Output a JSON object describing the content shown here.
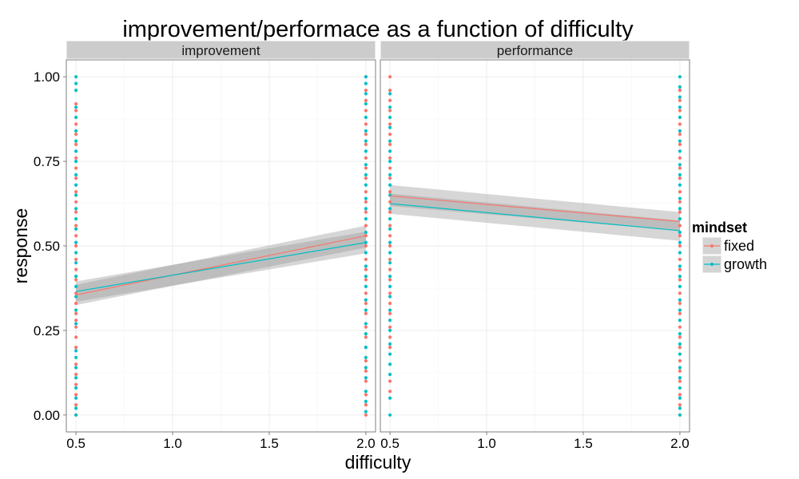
{
  "chart_data": {
    "type": "scatter",
    "title": "improvement/performace as a function of difficulty",
    "xlabel": "difficulty",
    "ylabel": "response",
    "xlim": [
      0.45,
      2.05
    ],
    "ylim": [
      -0.05,
      1.05
    ],
    "x_ticks": [
      0.5,
      1.0,
      1.5,
      2.0
    ],
    "x_tick_labels": [
      "0.5",
      "1.0",
      "1.5",
      "2.0"
    ],
    "y_ticks": [
      0.0,
      0.25,
      0.5,
      0.75,
      1.0
    ],
    "y_tick_labels": [
      "0.00",
      "0.25",
      "0.50",
      "0.75",
      "1.00"
    ],
    "grid": true,
    "legend": {
      "title": "mindset",
      "position": "right",
      "entries": [
        {
          "label": "fixed",
          "color": "#F8766D"
        },
        {
          "label": "growth",
          "color": "#00BFC4"
        }
      ]
    },
    "panels": [
      {
        "label": "improvement",
        "series": [
          {
            "name": "fixed",
            "color": "#F8766D",
            "points": {
              "0.5": [
                0.0,
                0.03,
                0.06,
                0.09,
                0.12,
                0.15,
                0.2,
                0.23,
                0.26,
                0.28,
                0.3,
                0.33,
                0.36,
                0.4,
                0.43,
                0.46,
                0.5,
                0.53,
                0.56,
                0.6,
                0.63,
                0.66,
                0.7,
                0.73,
                0.76,
                0.8,
                0.83,
                0.86,
                0.9,
                0.92
              ],
              "2.0": [
                0.0,
                0.03,
                0.06,
                0.1,
                0.13,
                0.16,
                0.2,
                0.23,
                0.26,
                0.3,
                0.33,
                0.36,
                0.4,
                0.43,
                0.46,
                0.5,
                0.53,
                0.56,
                0.6,
                0.63,
                0.66,
                0.7,
                0.73,
                0.76,
                0.8,
                0.83,
                0.86,
                0.9,
                0.93,
                0.96,
                1.0
              ]
            },
            "fit": {
              "x": [
                0.5,
                2.0
              ],
              "y": [
                0.355,
                0.53
              ]
            },
            "band": {
              "lower": [
                0.325,
                0.495
              ],
              "upper": [
                0.385,
                0.56
              ]
            }
          },
          {
            "name": "growth",
            "color": "#00BFC4",
            "points": {
              "0.5": [
                0.0,
                0.02,
                0.05,
                0.08,
                0.11,
                0.14,
                0.17,
                0.19,
                0.27,
                0.31,
                0.35,
                0.38,
                0.41,
                0.45,
                0.48,
                0.51,
                0.55,
                0.58,
                0.61,
                0.65,
                0.68,
                0.71,
                0.75,
                0.78,
                0.81,
                0.84,
                0.88,
                0.91,
                0.96,
                0.98,
                1.0
              ],
              "2.0": [
                0.01,
                0.04,
                0.07,
                0.11,
                0.14,
                0.17,
                0.2,
                0.24,
                0.27,
                0.31,
                0.34,
                0.38,
                0.41,
                0.44,
                0.48,
                0.51,
                0.54,
                0.58,
                0.61,
                0.64,
                0.68,
                0.71,
                0.74,
                0.78,
                0.81,
                0.84,
                0.88,
                0.92,
                0.95,
                0.98,
                1.0
              ]
            },
            "fit": {
              "x": [
                0.5,
                2.0
              ],
              "y": [
                0.365,
                0.51
              ]
            },
            "band": {
              "lower": [
                0.335,
                0.478
              ],
              "upper": [
                0.395,
                0.542
              ]
            }
          }
        ]
      },
      {
        "label": "performance",
        "series": [
          {
            "name": "fixed",
            "color": "#F8766D",
            "points": {
              "0.5": [
                0.07,
                0.1,
                0.2,
                0.23,
                0.26,
                0.3,
                0.33,
                0.36,
                0.4,
                0.43,
                0.46,
                0.5,
                0.53,
                0.56,
                0.6,
                0.63,
                0.66,
                0.7,
                0.73,
                0.76,
                0.8,
                0.83,
                0.86,
                0.9,
                0.93,
                0.96,
                1.0
              ],
              "2.0": [
                0.0,
                0.03,
                0.06,
                0.1,
                0.13,
                0.16,
                0.2,
                0.23,
                0.26,
                0.3,
                0.33,
                0.36,
                0.4,
                0.43,
                0.46,
                0.5,
                0.53,
                0.56,
                0.6,
                0.63,
                0.66,
                0.7,
                0.73,
                0.76,
                0.8,
                0.83,
                0.86,
                0.9,
                0.93,
                0.96
              ]
            },
            "fit": {
              "x": [
                0.5,
                2.0
              ],
              "y": [
                0.648,
                0.572
              ]
            },
            "band": {
              "lower": [
                0.618,
                0.545
              ],
              "upper": [
                0.68,
                0.6
              ]
            }
          },
          {
            "name": "growth",
            "color": "#00BFC4",
            "points": {
              "0.5": [
                0.0,
                0.05,
                0.12,
                0.15,
                0.18,
                0.21,
                0.25,
                0.28,
                0.31,
                0.35,
                0.38,
                0.41,
                0.45,
                0.48,
                0.51,
                0.55,
                0.58,
                0.61,
                0.65,
                0.68,
                0.71,
                0.75,
                0.78,
                0.81,
                0.85,
                0.88,
                0.91,
                0.95
              ],
              "2.0": [
                0.0,
                0.02,
                0.05,
                0.08,
                0.11,
                0.14,
                0.18,
                0.21,
                0.24,
                0.28,
                0.31,
                0.34,
                0.38,
                0.41,
                0.44,
                0.48,
                0.51,
                0.54,
                0.58,
                0.61,
                0.64,
                0.68,
                0.71,
                0.74,
                0.78,
                0.81,
                0.84,
                0.88,
                0.91,
                0.94,
                0.97,
                1.0
              ]
            },
            "fit": {
              "x": [
                0.5,
                2.0
              ],
              "y": [
                0.625,
                0.545
              ]
            },
            "band": {
              "lower": [
                0.595,
                0.515
              ],
              "upper": [
                0.655,
                0.575
              ]
            }
          }
        ]
      }
    ]
  }
}
